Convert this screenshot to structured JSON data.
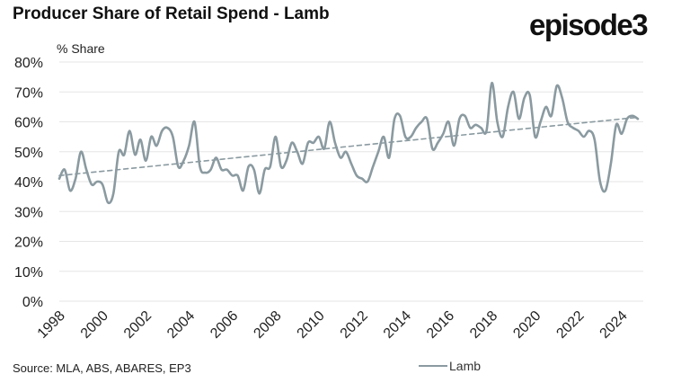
{
  "header": {
    "title": "Producer Share of Retail Spend - Lamb",
    "logo_text": "episode3"
  },
  "footer": {
    "source": "Source: MLA, ABS, ABARES, EP3"
  },
  "colors": {
    "series": "#8a9aa0",
    "trend": "#8a9aa0",
    "grid": "#e6e6e6"
  },
  "chart_data": {
    "type": "line",
    "ylabel": "% Share",
    "ylim": [
      0,
      80
    ],
    "yticks": [
      "0%",
      "10%",
      "20%",
      "30%",
      "40%",
      "50%",
      "60%",
      "70%",
      "80%"
    ],
    "xlim": [
      1998,
      2025
    ],
    "xticks": [
      "1998",
      "2000",
      "2002",
      "2004",
      "2006",
      "2008",
      "2010",
      "2012",
      "2014",
      "2016",
      "2018",
      "2020",
      "2022",
      "2024"
    ],
    "grid": "horizontal",
    "legend_position": "bottom",
    "series": [
      {
        "name": "Lamb",
        "style": "solid",
        "x": [
          1998.0,
          1998.25,
          1998.5,
          1998.75,
          1999.0,
          1999.25,
          1999.5,
          1999.75,
          2000.0,
          2000.25,
          2000.5,
          2000.75,
          2001.0,
          2001.25,
          2001.5,
          2001.75,
          2002.0,
          2002.25,
          2002.5,
          2002.75,
          2003.0,
          2003.25,
          2003.5,
          2003.75,
          2004.0,
          2004.25,
          2004.5,
          2004.75,
          2005.0,
          2005.25,
          2005.5,
          2005.75,
          2006.0,
          2006.25,
          2006.5,
          2006.75,
          2007.0,
          2007.25,
          2007.5,
          2007.75,
          2008.0,
          2008.25,
          2008.5,
          2008.75,
          2009.0,
          2009.25,
          2009.5,
          2009.75,
          2010.0,
          2010.25,
          2010.5,
          2010.75,
          2011.0,
          2011.25,
          2011.5,
          2011.75,
          2012.0,
          2012.25,
          2012.5,
          2012.75,
          2013.0,
          2013.25,
          2013.5,
          2013.75,
          2014.0,
          2014.25,
          2014.5,
          2014.75,
          2015.0,
          2015.25,
          2015.5,
          2015.75,
          2016.0,
          2016.25,
          2016.5,
          2016.75,
          2017.0,
          2017.25,
          2017.5,
          2017.75,
          2018.0,
          2018.25,
          2018.5,
          2018.75,
          2019.0,
          2019.25,
          2019.5,
          2019.75,
          2020.0,
          2020.25,
          2020.5,
          2020.75,
          2021.0,
          2021.25,
          2021.5,
          2021.75,
          2022.0,
          2022.25,
          2022.5,
          2022.75,
          2023.0,
          2023.25,
          2023.5,
          2023.75,
          2024.0,
          2024.25,
          2024.5,
          2024.75
        ],
        "values": [
          41,
          44,
          37,
          41,
          50,
          44,
          39,
          40,
          39,
          33,
          36,
          50,
          49,
          57,
          49,
          54,
          47,
          55,
          52,
          57,
          58,
          55,
          45,
          47,
          52,
          60,
          45,
          43,
          44,
          48,
          44,
          44,
          42,
          42,
          37,
          45,
          44,
          36,
          44,
          45,
          55,
          45,
          47,
          53,
          50,
          46,
          53,
          53,
          55,
          51,
          60,
          53,
          48,
          50,
          46,
          42,
          41,
          40,
          45,
          50,
          55,
          48,
          61,
          62,
          55,
          55,
          58,
          60,
          61,
          51,
          53,
          56,
          60,
          52,
          61,
          62,
          58,
          59,
          58,
          57,
          73,
          60,
          55,
          65,
          70,
          61,
          68,
          69,
          55,
          60,
          65,
          62,
          72,
          68,
          60,
          58,
          57,
          55,
          57,
          54,
          40,
          37,
          46,
          59,
          56,
          61,
          62,
          61
        ]
      },
      {
        "name": "",
        "style": "dashed",
        "x": [
          1998.0,
          2024.75
        ],
        "values": [
          42,
          61.5
        ]
      }
    ]
  }
}
